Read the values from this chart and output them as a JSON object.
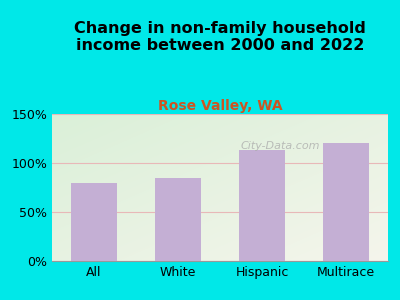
{
  "title": "Change in non-family household\nincome between 2000 and 2022",
  "subtitle": "Rose Valley, WA",
  "categories": [
    "All",
    "White",
    "Hispanic",
    "Multirace"
  ],
  "values": [
    80,
    85,
    113,
    120
  ],
  "bar_color": "#c4afd4",
  "title_fontsize": 11.5,
  "subtitle_fontsize": 10,
  "subtitle_color": "#cc5522",
  "tick_label_fontsize": 9,
  "ylim": [
    0,
    150
  ],
  "yticks": [
    0,
    50,
    100,
    150
  ],
  "ytick_labels": [
    "0%",
    "50%",
    "100%",
    "150%"
  ],
  "bg_outer_color": "#00e8e8",
  "bg_plot_top_left": "#daf0d8",
  "bg_plot_bottom_right": "#f5f5ec",
  "grid_color": "#e8b8b8",
  "watermark": "City-Data.com"
}
